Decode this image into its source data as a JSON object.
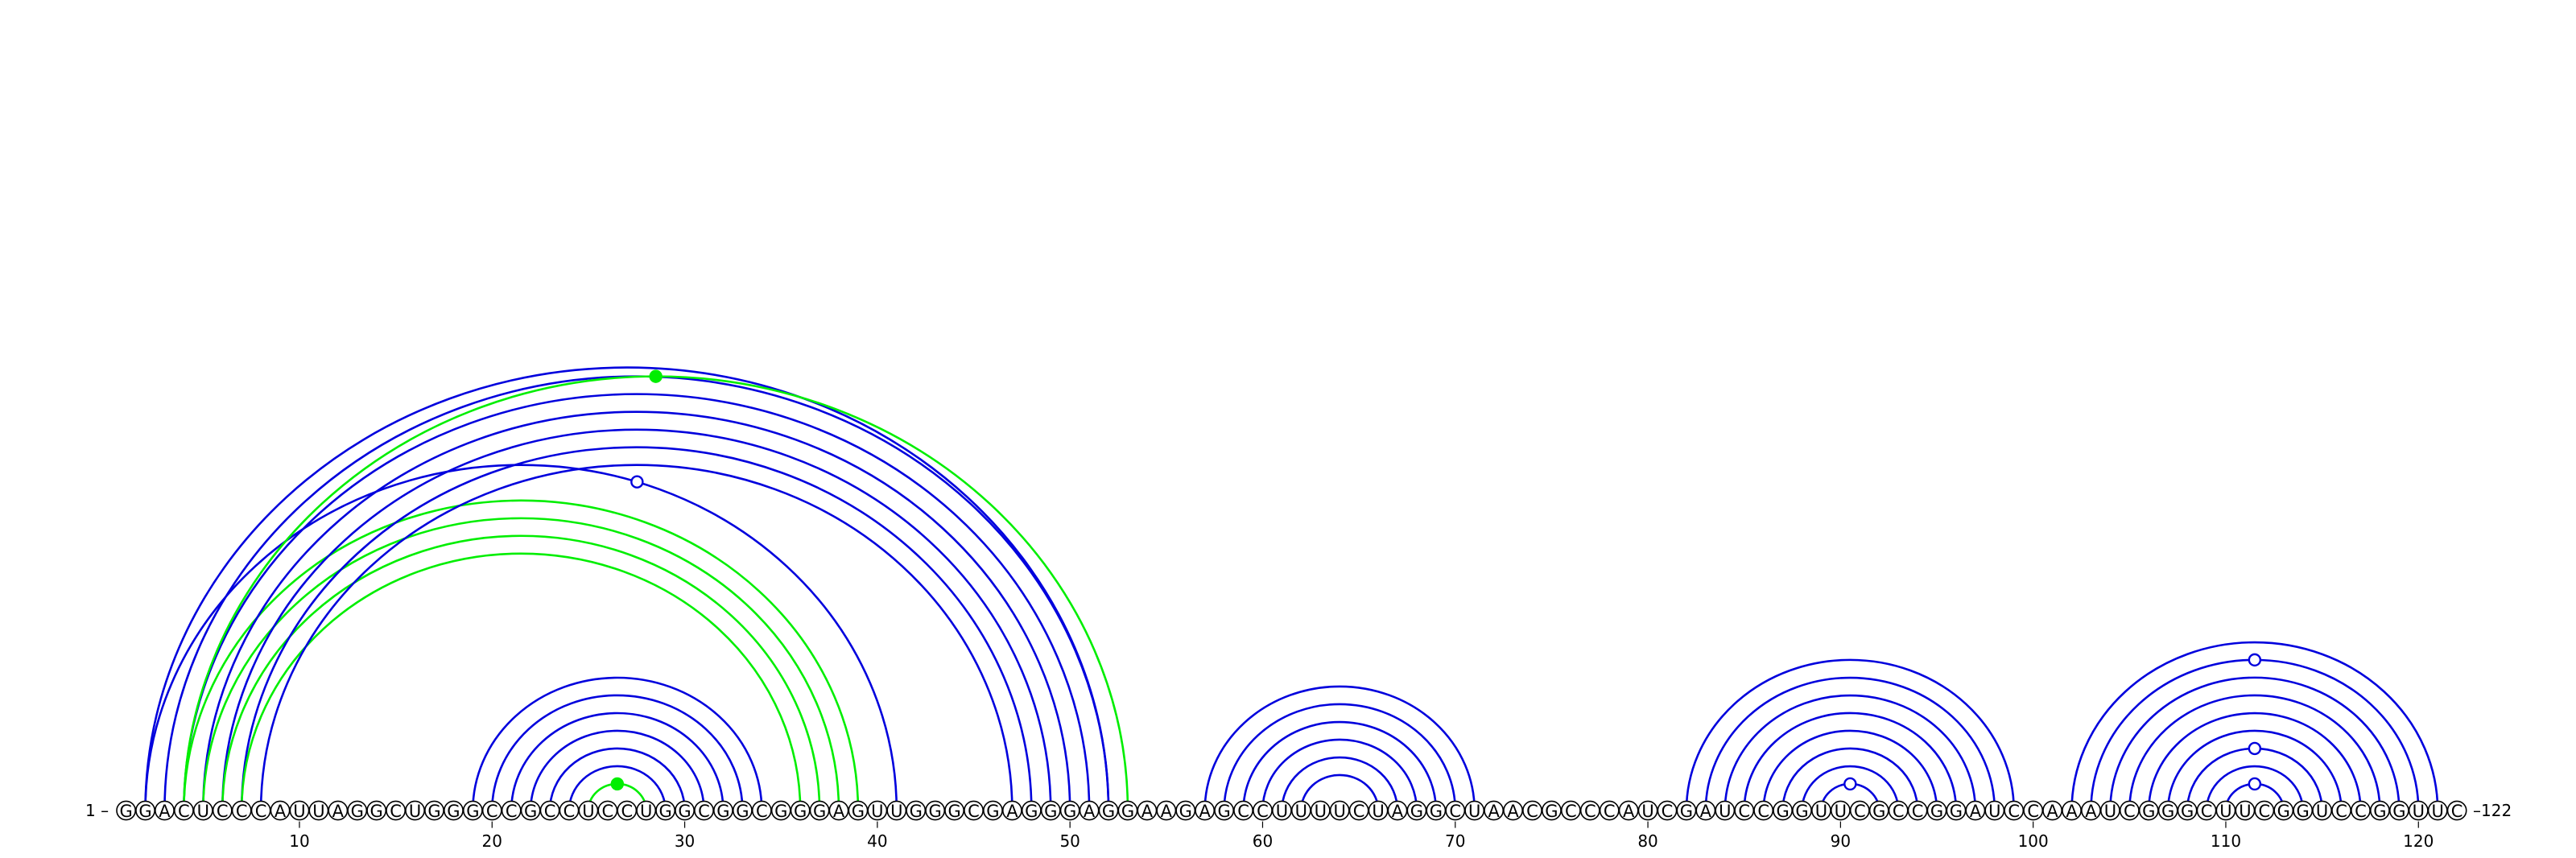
{
  "diagram": {
    "type": "rna-arc-diagram",
    "sequence": "GGACUCCCAUUAGGCUGGGCCGCCUCCUGGCGGCGGGAGUUGGGCGAGGGAGGAAGAGCCUUUUCUAGGCUAACGCCCAUCGAUCCGGUUCGCCGGAUCCAAAUCGGGCUUCGGUCCGGUUC",
    "start_label": "1 –",
    "end_label": "–122",
    "tick_labels": [
      "10",
      "20",
      "30",
      "40",
      "50",
      "60",
      "70",
      "80",
      "90",
      "100",
      "110",
      "120"
    ],
    "colors": {
      "blue": "#0000dd",
      "green": "#00ee00",
      "circle_stroke": "#000000"
    },
    "arcs": [
      {
        "i": 2,
        "j": 41,
        "color": "blue"
      },
      {
        "i": 2,
        "j": 52,
        "color": "blue"
      },
      {
        "i": 3,
        "j": 52,
        "color": "blue"
      },
      {
        "i": 4,
        "j": 51,
        "color": "blue"
      },
      {
        "i": 4,
        "j": 53,
        "color": "green"
      },
      {
        "i": 4,
        "j": 39,
        "color": "green"
      },
      {
        "i": 5,
        "j": 50,
        "color": "blue"
      },
      {
        "i": 5,
        "j": 38,
        "color": "green"
      },
      {
        "i": 6,
        "j": 49,
        "color": "blue"
      },
      {
        "i": 6,
        "j": 37,
        "color": "green"
      },
      {
        "i": 7,
        "j": 48,
        "color": "blue"
      },
      {
        "i": 7,
        "j": 36,
        "color": "green"
      },
      {
        "i": 8,
        "j": 47,
        "color": "blue"
      },
      {
        "i": 19,
        "j": 34,
        "color": "blue"
      },
      {
        "i": 20,
        "j": 33,
        "color": "blue"
      },
      {
        "i": 21,
        "j": 32,
        "color": "blue"
      },
      {
        "i": 22,
        "j": 31,
        "color": "blue"
      },
      {
        "i": 23,
        "j": 30,
        "color": "blue"
      },
      {
        "i": 24,
        "j": 29,
        "color": "blue"
      },
      {
        "i": 25,
        "j": 28,
        "color": "green"
      },
      {
        "i": 57,
        "j": 71,
        "color": "blue"
      },
      {
        "i": 58,
        "j": 70,
        "color": "blue"
      },
      {
        "i": 59,
        "j": 69,
        "color": "blue"
      },
      {
        "i": 60,
        "j": 68,
        "color": "blue"
      },
      {
        "i": 61,
        "j": 67,
        "color": "blue"
      },
      {
        "i": 62,
        "j": 66,
        "color": "blue"
      },
      {
        "i": 82,
        "j": 99,
        "color": "blue"
      },
      {
        "i": 83,
        "j": 98,
        "color": "blue"
      },
      {
        "i": 84,
        "j": 97,
        "color": "blue"
      },
      {
        "i": 85,
        "j": 96,
        "color": "blue"
      },
      {
        "i": 86,
        "j": 95,
        "color": "blue"
      },
      {
        "i": 87,
        "j": 94,
        "color": "blue"
      },
      {
        "i": 88,
        "j": 93,
        "color": "blue"
      },
      {
        "i": 89,
        "j": 92,
        "color": "blue"
      },
      {
        "i": 102,
        "j": 121,
        "color": "blue"
      },
      {
        "i": 103,
        "j": 120,
        "color": "blue"
      },
      {
        "i": 104,
        "j": 119,
        "color": "blue"
      },
      {
        "i": 105,
        "j": 118,
        "color": "blue"
      },
      {
        "i": 106,
        "j": 117,
        "color": "blue"
      },
      {
        "i": 107,
        "j": 116,
        "color": "blue"
      },
      {
        "i": 108,
        "j": 115,
        "color": "blue"
      },
      {
        "i": 109,
        "j": 114,
        "color": "blue"
      },
      {
        "i": 110,
        "j": 113,
        "color": "blue"
      }
    ],
    "markers": [
      {
        "arc": 4,
        "fill": "green"
      },
      {
        "arc": 0,
        "fill": "white",
        "t": 0.6
      },
      {
        "arc": 19,
        "fill": "green"
      },
      {
        "arc": 33,
        "fill": "white"
      },
      {
        "arc": 35,
        "fill": "white"
      },
      {
        "arc": 40,
        "fill": "white"
      },
      {
        "arc": 42,
        "fill": "white"
      }
    ]
  }
}
